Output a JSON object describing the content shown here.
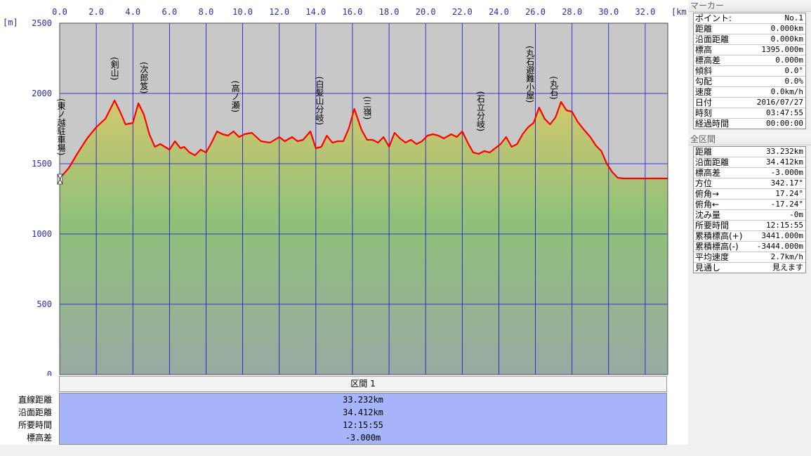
{
  "chart_data": {
    "type": "area",
    "x_unit": "[km]",
    "y_unit": "[m]",
    "xlim": [
      0,
      33.232
    ],
    "ylim": [
      0,
      2500
    ],
    "x_ticks": [
      "0.0",
      "2.0",
      "4.0",
      "6.0",
      "8.0",
      "10.0",
      "12.0",
      "14.0",
      "16.0",
      "18.0",
      "20.0",
      "22.0",
      "24.0",
      "26.0",
      "28.0",
      "30.0",
      "32.0"
    ],
    "y_ticks": [
      "2500",
      "2000",
      "1500",
      "1000",
      "500",
      "0"
    ],
    "grid": true,
    "x": [
      0,
      0.5,
      1.0,
      1.5,
      2.0,
      2.5,
      3.0,
      3.3,
      3.6,
      4.0,
      4.3,
      4.6,
      4.9,
      5.2,
      5.5,
      6.0,
      6.3,
      6.6,
      6.8,
      7.1,
      7.4,
      7.7,
      8.0,
      8.3,
      8.6,
      8.9,
      9.2,
      9.5,
      9.8,
      10.1,
      10.5,
      11.0,
      11.5,
      12.0,
      12.3,
      12.7,
      13.0,
      13.3,
      13.7,
      14.0,
      14.3,
      14.6,
      14.9,
      15.2,
      15.5,
      15.8,
      16.1,
      16.5,
      16.8,
      17.1,
      17.4,
      17.7,
      18.0,
      18.3,
      18.6,
      18.9,
      19.2,
      19.5,
      19.8,
      20.1,
      20.4,
      20.7,
      21.0,
      21.4,
      21.7,
      22.0,
      22.3,
      22.6,
      22.9,
      23.2,
      23.5,
      23.8,
      24.1,
      24.4,
      24.7,
      25.0,
      25.3,
      25.6,
      25.9,
      26.2,
      26.5,
      26.8,
      27.1,
      27.4,
      27.7,
      28.0,
      28.3,
      28.6,
      29.0,
      29.3,
      29.6,
      29.9,
      30.2,
      30.5,
      30.8,
      31.1,
      31.4,
      31.7,
      32.0,
      32.3,
      32.6,
      33.0,
      33.232
    ],
    "y": [
      1395,
      1470,
      1580,
      1680,
      1760,
      1820,
      1950,
      1870,
      1780,
      1790,
      1930,
      1850,
      1710,
      1620,
      1640,
      1600,
      1660,
      1610,
      1620,
      1580,
      1560,
      1600,
      1580,
      1650,
      1730,
      1710,
      1700,
      1730,
      1690,
      1710,
      1720,
      1660,
      1650,
      1690,
      1660,
      1690,
      1660,
      1670,
      1730,
      1610,
      1620,
      1700,
      1650,
      1660,
      1660,
      1750,
      1890,
      1740,
      1670,
      1670,
      1650,
      1690,
      1620,
      1720,
      1680,
      1650,
      1670,
      1640,
      1660,
      1700,
      1710,
      1700,
      1680,
      1710,
      1690,
      1730,
      1650,
      1580,
      1570,
      1590,
      1580,
      1610,
      1640,
      1690,
      1620,
      1640,
      1710,
      1760,
      1790,
      1900,
      1820,
      1780,
      1830,
      1940,
      1880,
      1870,
      1800,
      1750,
      1690,
      1630,
      1590,
      1500,
      1440,
      1400,
      1395,
      1395,
      1395,
      1395,
      1395,
      1395,
      1395,
      1395,
      1395
    ],
    "waypoints": [
      {
        "label": "東ノ越駐車場",
        "km": 0.0
      },
      {
        "label": "剣山",
        "km": 3.0
      },
      {
        "label": "次郎笈",
        "km": 4.6
      },
      {
        "label": "高ノ瀬",
        "km": 9.6
      },
      {
        "label": "白髪山分岐",
        "km": 14.2
      },
      {
        "label": "三嶺",
        "km": 16.8
      },
      {
        "label": "石立分岐",
        "km": 23.0
      },
      {
        "label": "丸石避難小屋",
        "km": 25.7
      },
      {
        "label": "丸石",
        "km": 27.0
      }
    ]
  },
  "marker": {
    "title": "マーカー",
    "rows": [
      {
        "k": "ポイント:",
        "v": "No.1"
      },
      {
        "k": "距離",
        "v": "0.000km"
      },
      {
        "k": "沿面距離",
        "v": "0.000km"
      },
      {
        "k": "標高",
        "v": "1395.000m"
      },
      {
        "k": "標高差",
        "v": "0.000m"
      },
      {
        "k": "傾斜",
        "v": "0.0°"
      },
      {
        "k": "勾配",
        "v": "0.0%"
      },
      {
        "k": "速度",
        "v": "0.0km/h"
      },
      {
        "k": "日付",
        "v": "2016/07/27"
      },
      {
        "k": "時刻",
        "v": "03:47:55"
      },
      {
        "k": "経過時間",
        "v": "00:00:00"
      }
    ]
  },
  "overall": {
    "title": "全区間",
    "rows": [
      {
        "k": "距離",
        "v": "33.232km"
      },
      {
        "k": "沿面距離",
        "v": "34.412km"
      },
      {
        "k": "標高差",
        "v": "-3.000m"
      },
      {
        "k": "方位",
        "v": "342.17°"
      },
      {
        "k": "俯角→",
        "v": "17.24°"
      },
      {
        "k": "俯角←",
        "v": "-17.24°"
      },
      {
        "k": "沈み量",
        "v": "-0m"
      },
      {
        "k": "所要時間",
        "v": "12:15:55"
      },
      {
        "k": "累積標高(+)",
        "v": "3441.000m"
      },
      {
        "k": "累積標高(-)",
        "v": "-3444.000m"
      },
      {
        "k": "平均速度",
        "v": "2.7km/h"
      },
      {
        "k": "見通し",
        "v": "見えます"
      }
    ]
  },
  "section": {
    "header": "区間 1",
    "labels": [
      "直線距離",
      "沿面距離",
      "所要時間",
      "標高差"
    ],
    "values": [
      "33.232km",
      "34.412km",
      "12:15:55",
      "-3.000m"
    ]
  },
  "colors": {
    "plot_top": "#c8c8c8",
    "fill_top": "#d2c86e",
    "fill_mid": "#8fc07a",
    "fill_bottom": "#9aaaa4",
    "profile_line": "#ff0000",
    "grid_line": "#1010d0",
    "summary_bg": "#a6b4fa"
  }
}
